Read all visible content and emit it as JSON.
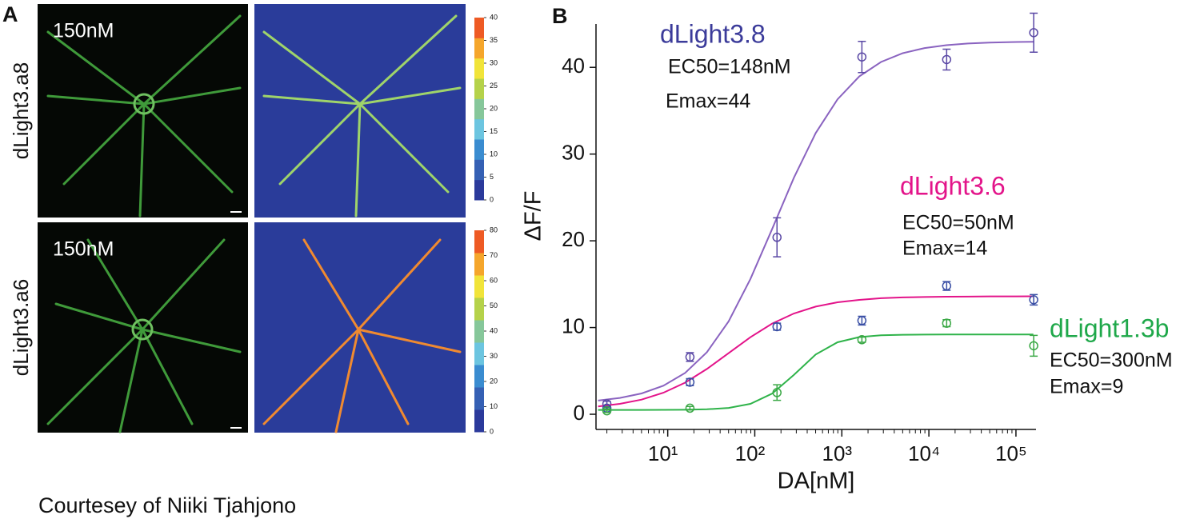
{
  "panel_a": {
    "label": "A",
    "rows": [
      {
        "name": "dLight3.a8",
        "concentration": "150nM",
        "colorbar_ticks": [
          0,
          5,
          10,
          15,
          20,
          25,
          30,
          35,
          40
        ]
      },
      {
        "name": "dLight3.a6",
        "concentration": "150nM",
        "colorbar_ticks": [
          0,
          10,
          20,
          30,
          40,
          50,
          60,
          70,
          80
        ]
      }
    ]
  },
  "caption": "Courtesey of Niiki Tjahjono",
  "chart_data": {
    "type": "scatter",
    "panel_label": "B",
    "x_label": "DA[nM]",
    "y_label": "ΔF/F",
    "log_x": true,
    "xlim": [
      1.5,
      170000
    ],
    "ylim": [
      -1.75,
      45
    ],
    "xticks": [
      {
        "value": 10,
        "label": "10¹"
      },
      {
        "value": 100,
        "label": "10²"
      },
      {
        "value": 1000,
        "label": "10³"
      },
      {
        "value": 10000,
        "label": "10⁴"
      },
      {
        "value": 100000,
        "label": "10⁵"
      }
    ],
    "yticks": [
      0,
      10,
      20,
      30,
      40
    ],
    "x": [
      2,
      18,
      180,
      1700,
      16000,
      160000
    ],
    "fit_x": [
      1.585,
      2.818,
      5.012,
      8.913,
      15.85,
      28.18,
      50.12,
      89.13,
      158.5,
      281.8,
      501.2,
      891.3,
      1585,
      2818,
      5012,
      8913,
      15849,
      28184,
      50119,
      89125,
      158489
    ],
    "series": [
      {
        "name": "dLight3.8",
        "color": "#8a63c0",
        "marker_color": "#5a48a5",
        "label_color": "#3b3b9a",
        "label_lines": [
          "EC50=148nM",
          "Emax=44"
        ],
        "values": [
          1.2,
          6.6,
          20.4,
          41.2,
          40.9,
          44.0
        ],
        "errors": [
          0.3,
          0.5,
          2.25,
          1.8,
          1.2,
          2.25
        ],
        "fit_values": [
          1.58,
          1.88,
          2.4,
          3.29,
          4.77,
          7.15,
          10.72,
          15.59,
          21.37,
          27.28,
          32.42,
          36.31,
          38.96,
          40.62,
          41.63,
          42.22,
          42.56,
          42.75,
          42.86,
          42.92,
          42.95
        ]
      },
      {
        "name": "dLight3.6",
        "color": "#e3148a",
        "marker_color": "#3a4fa5",
        "label_color": "#e3148a",
        "label_lines": [
          "EC50=50nM",
          "Emax=14"
        ],
        "values": [
          0.7,
          3.7,
          10.1,
          10.8,
          14.8,
          13.2
        ],
        "errors": [
          0.2,
          0.4,
          0.4,
          0.5,
          0.5,
          0.6
        ],
        "fit_values": [
          0.9,
          1.2,
          1.69,
          2.48,
          3.64,
          5.22,
          7.05,
          8.88,
          10.46,
          11.62,
          12.41,
          12.91,
          13.19,
          13.38,
          13.47,
          13.52,
          13.56,
          13.57,
          13.59,
          13.59,
          13.6
        ]
      },
      {
        "name": "dLight1.3b",
        "color": "#2fb34a",
        "marker_color": "#3aa845",
        "label_color": "#1fa84a",
        "label_lines": [
          "EC50=300nM",
          "Emax=9"
        ],
        "values": [
          0.4,
          0.7,
          2.5,
          8.6,
          10.5,
          7.9
        ],
        "errors": [
          0.2,
          0.2,
          0.9,
          0.3,
          0.4,
          1.2
        ],
        "fit_values": [
          0.5,
          0.5,
          0.5,
          0.51,
          0.52,
          0.57,
          0.73,
          1.2,
          2.38,
          4.55,
          6.89,
          8.3,
          8.9,
          9.1,
          9.17,
          9.19,
          9.2,
          9.2,
          9.2,
          9.2,
          9.2
        ]
      }
    ]
  }
}
